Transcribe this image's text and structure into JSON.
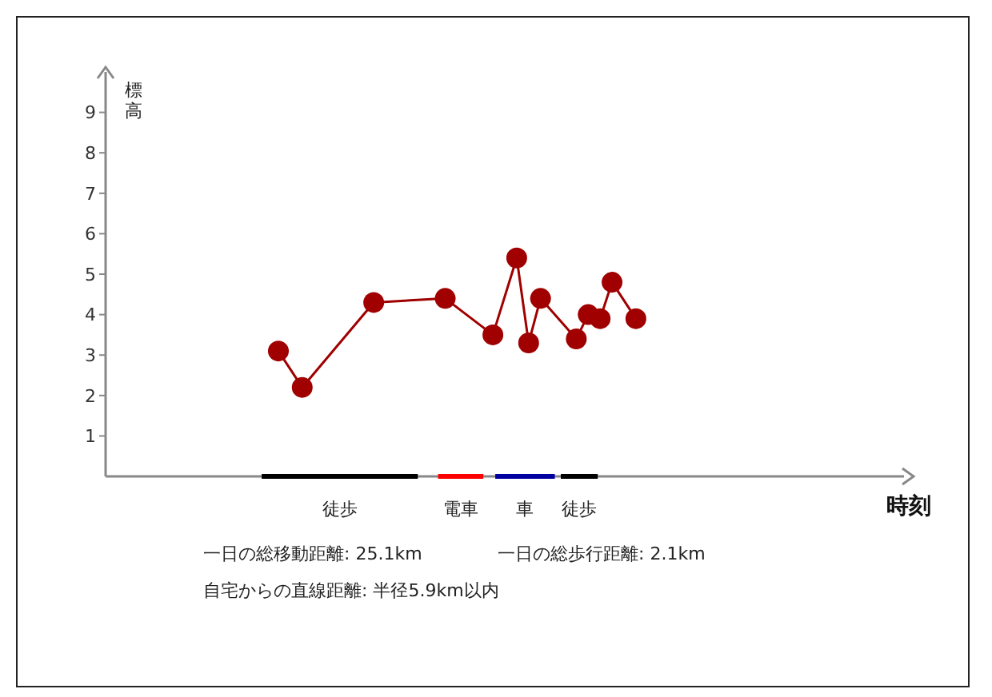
{
  "chart_data": {
    "type": "line",
    "xlabel": "時刻",
    "ylabel": "標高",
    "categories": [
      null,
      null,
      null,
      null,
      null,
      null,
      null,
      null,
      null,
      null,
      null,
      null,
      null,
      null,
      null,
      null,
      null,
      null,
      null,
      null,
      null,
      null,
      null,
      null,
      null,
      null,
      null,
      null,
      null,
      null,
      null,
      null,
      null,
      null,
      null,
      null,
      null,
      null,
      null,
      null,
      null,
      null,
      null,
      null,
      null,
      null,
      null,
      null,
      null,
      null,
      null,
      null,
      null,
      null,
      null,
      null,
      null,
      null,
      null,
      null,
      null,
      null,
      null,
      null,
      null,
      null,
      null
    ],
    "series": [
      {
        "color": "#a00000",
        "values": [
          null,
          null,
          null,
          null,
          null,
          null,
          null,
          null,
          null,
          null,
          null,
          null,
          null,
          null,
          3.1,
          null,
          2.2,
          null,
          null,
          null,
          null,
          null,
          4.3,
          null,
          null,
          null,
          null,
          null,
          4.4,
          null,
          null,
          null,
          3.5,
          null,
          5.4,
          3.3,
          4.4,
          null,
          null,
          3.4,
          4.0,
          3.9,
          4.8,
          null,
          3.9,
          null,
          null,
          null,
          null,
          null,
          null,
          null,
          null,
          null,
          null,
          null,
          null,
          null,
          null,
          null,
          null,
          null,
          null,
          null,
          null,
          null,
          null
        ]
      }
    ],
    "ylim": [
      0,
      10
    ],
    "yticks": [
      1,
      2,
      3,
      4,
      5,
      6,
      7,
      8,
      9
    ],
    "tick_labels": "y",
    "marker": "circle",
    "annotations": [
      "徒歩",
      "電車",
      "車",
      "徒歩",
      "一日の総移動距離: 25.1km",
      "一日の総歩行距離: 2.1km",
      "自宅からの直線距離: 半径5.9km以内"
    ]
  }
}
